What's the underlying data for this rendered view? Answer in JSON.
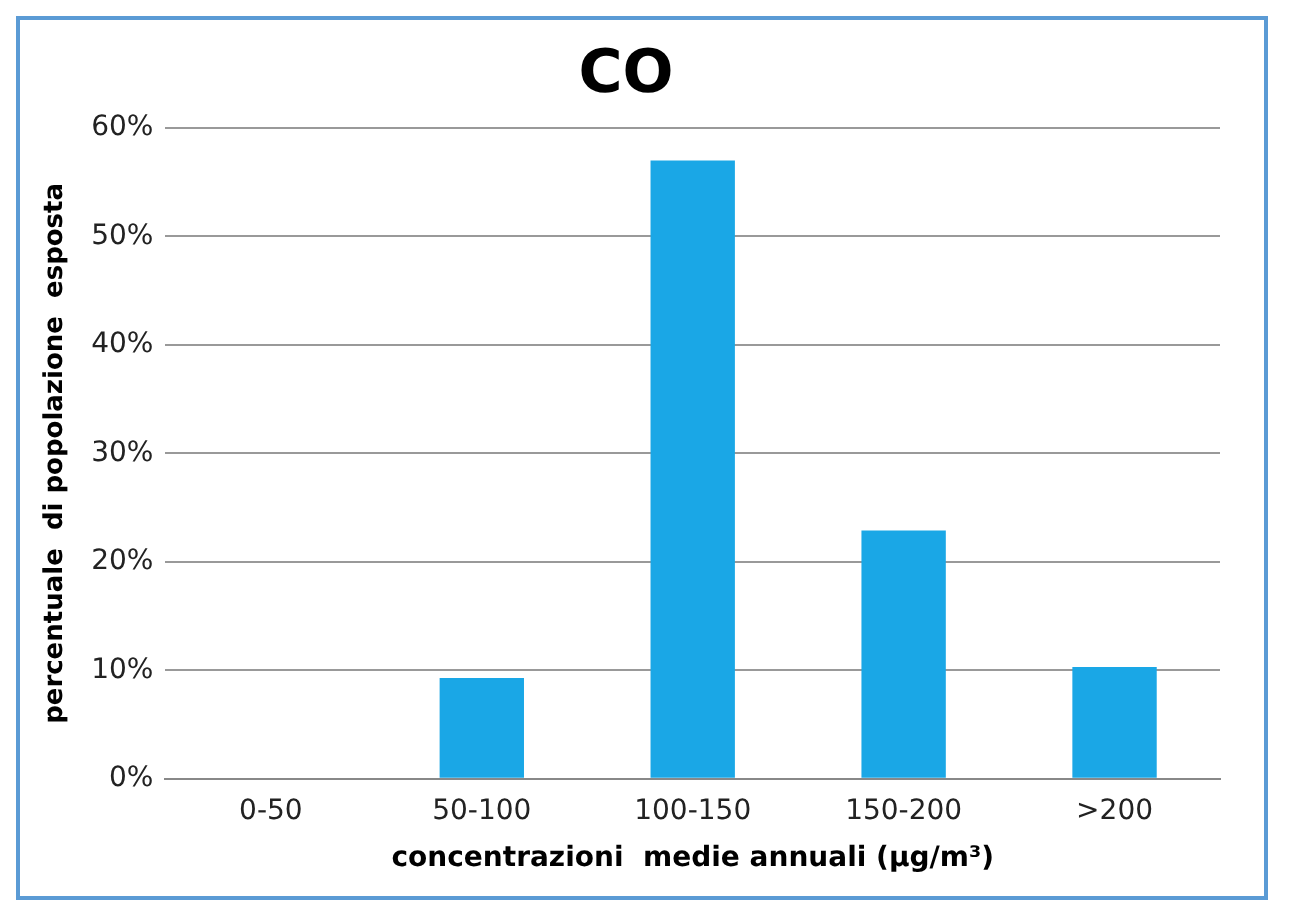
{
  "chart_data": {
    "type": "bar",
    "title": "CO",
    "xlabel": "concentrazioni  medie annuali (µg/m³)",
    "ylabel": "percentuale  di popolazione  esposta",
    "categories": [
      "0-50",
      "50-100",
      "100-150",
      "150-200",
      ">200"
    ],
    "values": [
      0,
      9.3,
      57,
      22.9,
      10.3
    ],
    "color": "#1aa7e6",
    "ylim": [
      0,
      60
    ],
    "yticks": [
      {
        "value": 0,
        "label": "0%"
      },
      {
        "value": 10,
        "label": "10%"
      },
      {
        "value": 20,
        "label": "20%"
      },
      {
        "value": 30,
        "label": "30%"
      },
      {
        "value": 40,
        "label": "40%"
      },
      {
        "value": 50,
        "label": "50%"
      },
      {
        "value": 60,
        "label": "60%"
      }
    ],
    "grid": "y",
    "legend": false
  }
}
